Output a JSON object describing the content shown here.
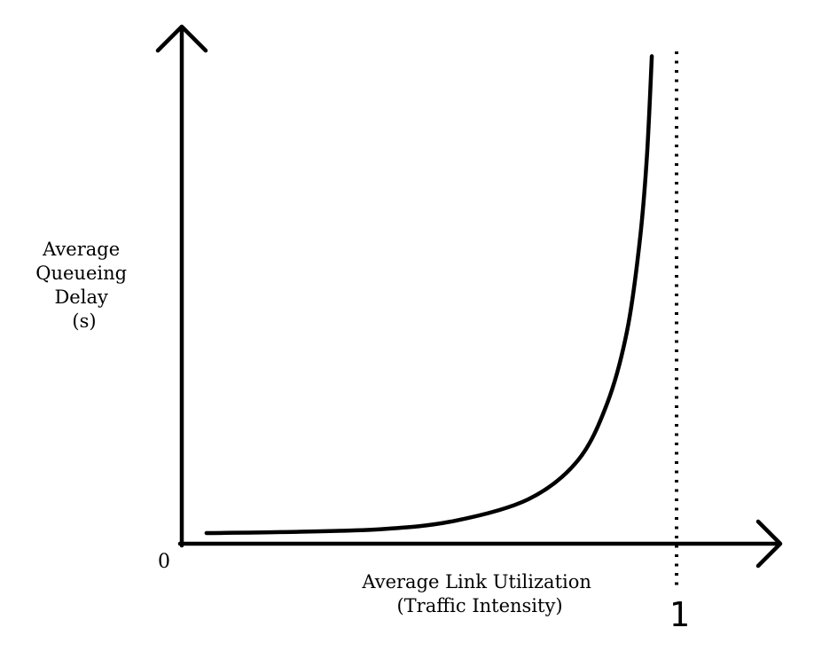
{
  "chart_data": {
    "type": "line",
    "title": "",
    "xlabel": [
      "Average Link Utilization",
      "(Traffic Intensity)"
    ],
    "ylabel": [
      "Average",
      "Queueing",
      "Delay",
      "(s)"
    ],
    "x_origin_label": "0",
    "x_marker_label": "1",
    "x_marker_value": 1,
    "xlim": [
      0,
      1
    ],
    "grid": false,
    "legend": "none",
    "series": [
      {
        "points": [
          {
            "x": 0.05,
            "y": 0.0
          },
          {
            "x": 0.2,
            "y": 0.002
          },
          {
            "x": 0.4,
            "y": 0.008
          },
          {
            "x": 0.55,
            "y": 0.025
          },
          {
            "x": 0.7,
            "y": 0.07
          },
          {
            "x": 0.8,
            "y": 0.15
          },
          {
            "x": 0.86,
            "y": 0.27
          },
          {
            "x": 0.9,
            "y": 0.42
          },
          {
            "x": 0.925,
            "y": 0.6
          },
          {
            "x": 0.94,
            "y": 0.78
          },
          {
            "x": 0.95,
            "y": 0.99
          }
        ]
      }
    ]
  }
}
